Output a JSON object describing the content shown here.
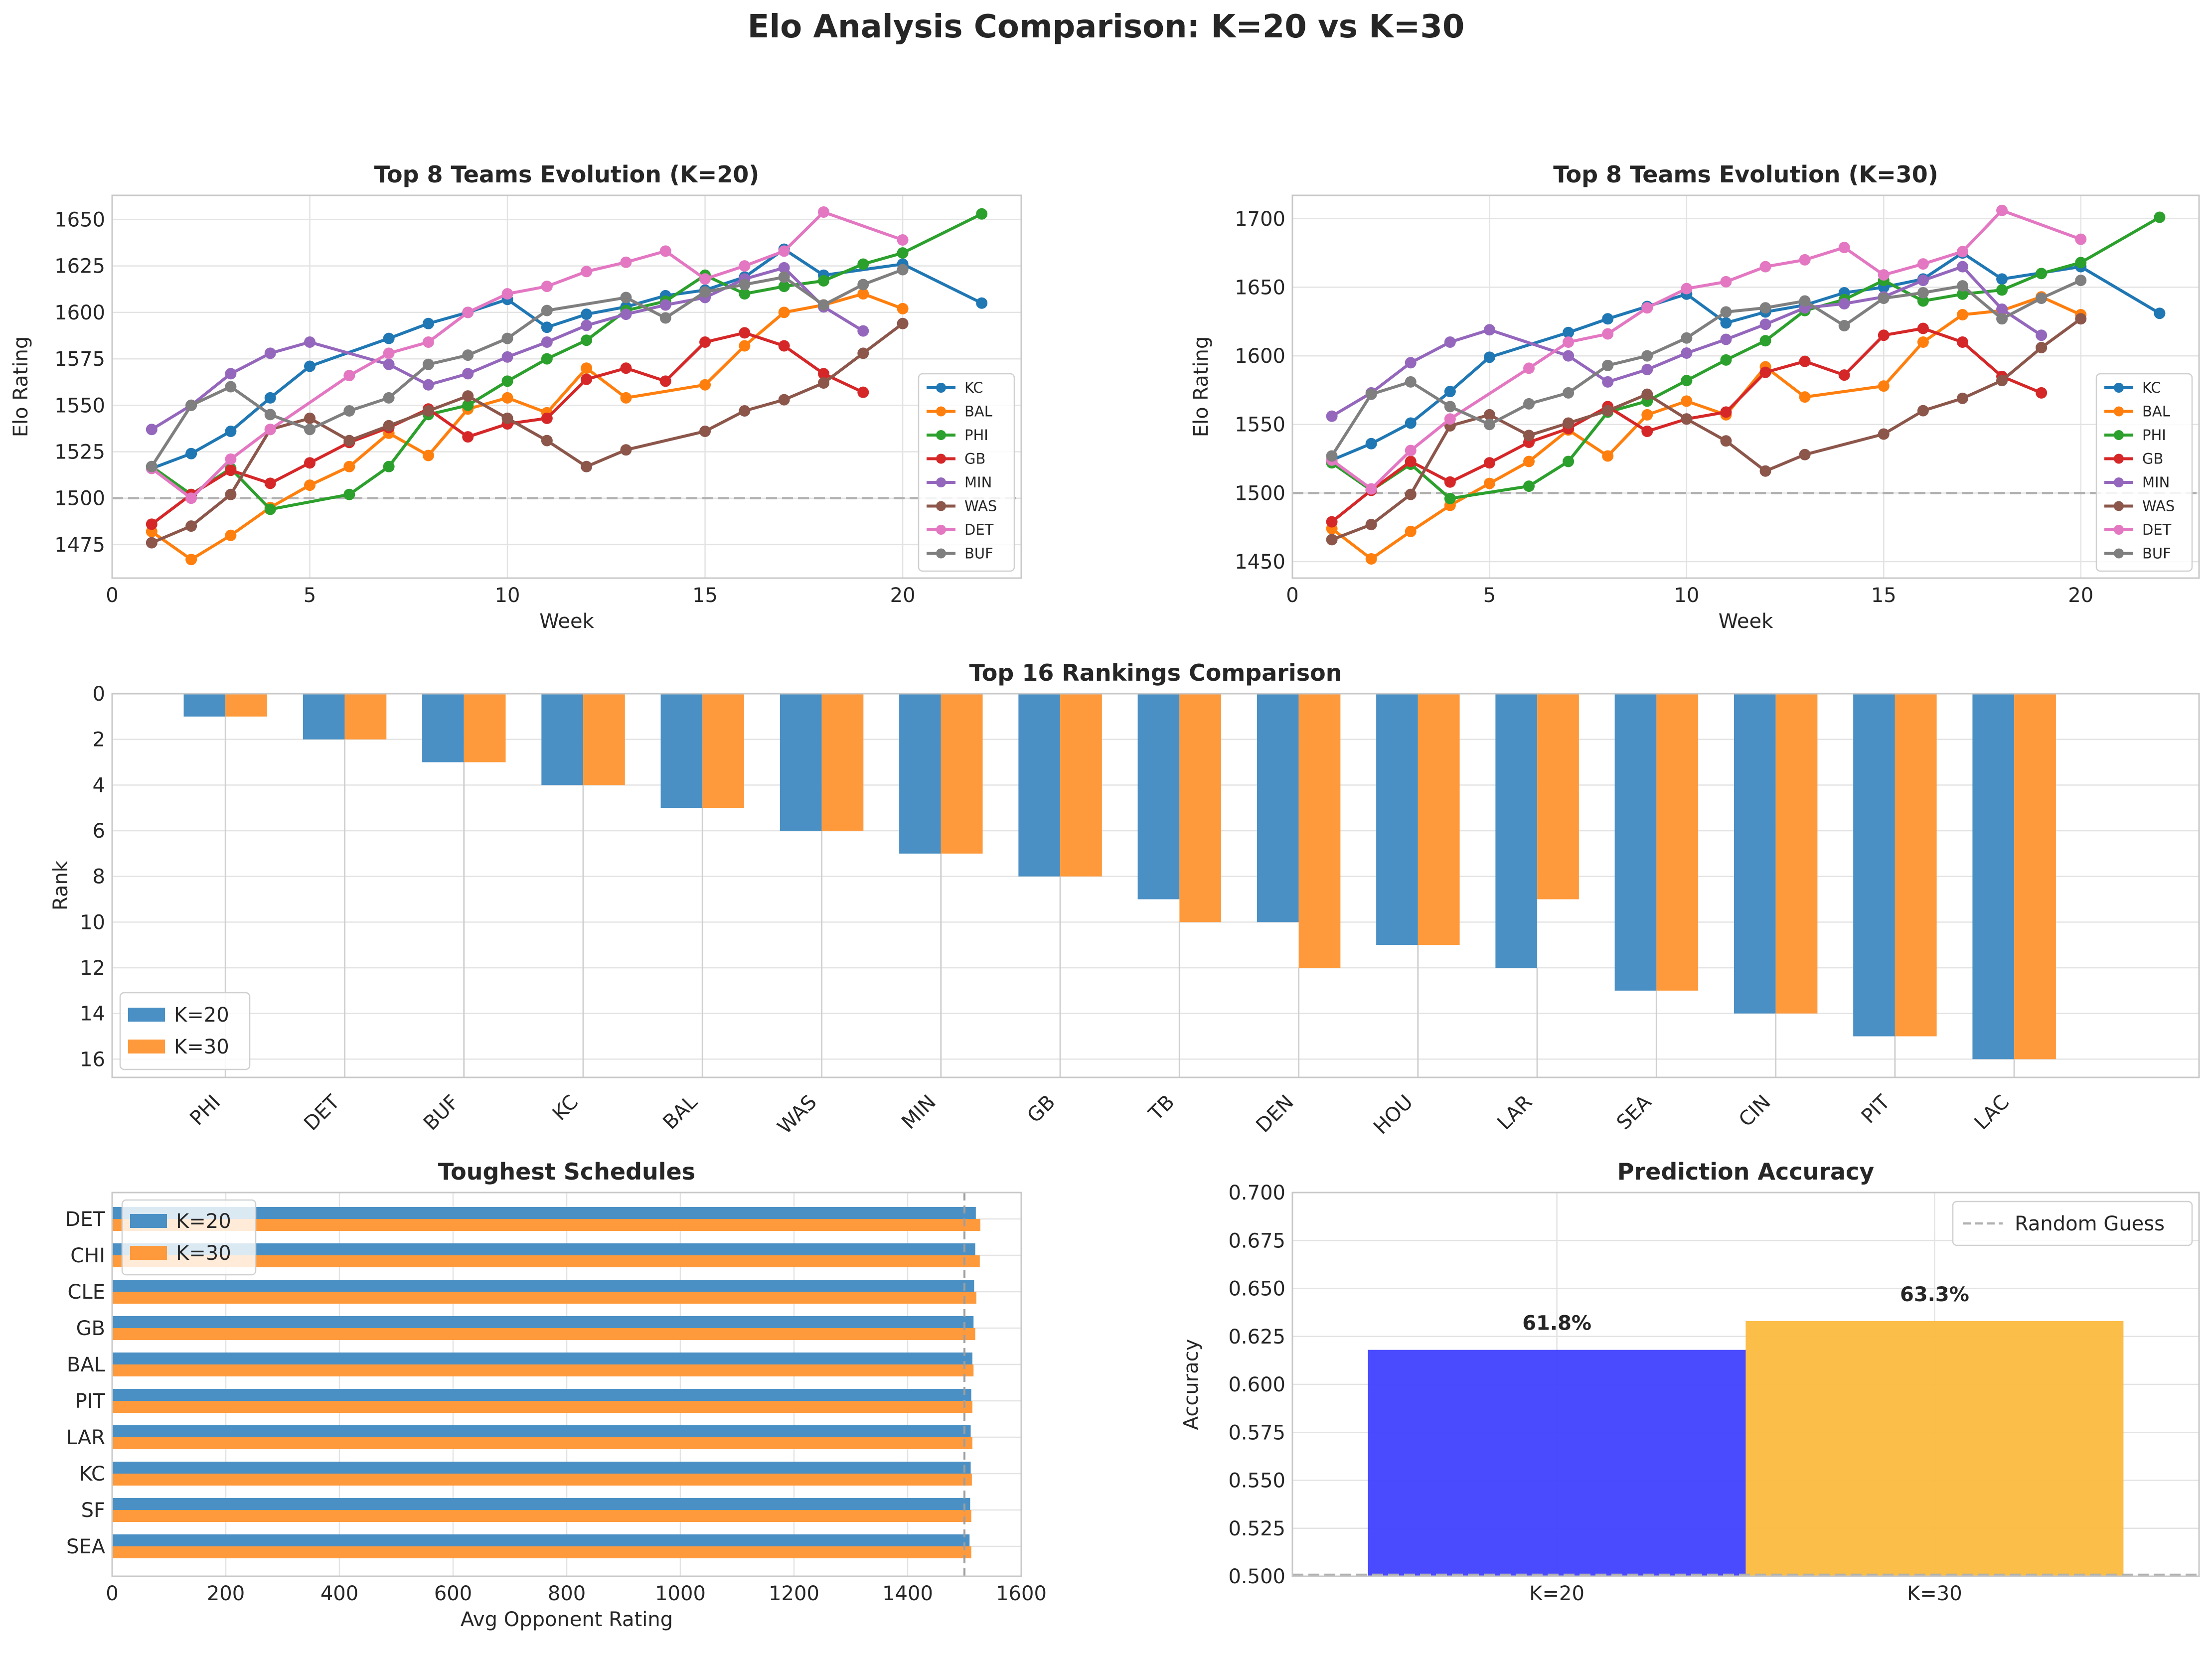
{
  "figure": {
    "suptitle": "Elo Analysis Comparison: K=20 vs K=30"
  },
  "chart_data": [
    {
      "type": "line",
      "title": "Top 8 Teams Evolution (K=20)",
      "xlabel": "Week",
      "ylabel": "Elo Rating",
      "xlim": [
        0,
        23
      ],
      "ylim": [
        1457,
        1663
      ],
      "xticks": [
        0,
        5,
        10,
        15,
        20
      ],
      "yticks": [
        1475,
        1500,
        1525,
        1550,
        1575,
        1600,
        1625,
        1650
      ],
      "baseline": 1500,
      "legend": "lower-right",
      "series": [
        {
          "name": "KC",
          "color": "#1f77b4",
          "x": [
            1,
            2,
            3,
            4,
            5,
            7,
            8,
            9,
            10,
            11,
            12,
            13,
            14,
            15,
            16,
            17,
            18,
            20,
            22
          ],
          "values": [
            1516,
            1524,
            1536,
            1554,
            1571,
            1586,
            1594,
            1600,
            1607,
            1592,
            1599,
            1603,
            1609,
            1612,
            1619,
            1634,
            1620,
            1626,
            1605
          ]
        },
        {
          "name": "BAL",
          "color": "#ff7f0e",
          "x": [
            1,
            2,
            3,
            4,
            5,
            6,
            7,
            8,
            9,
            10,
            11,
            12,
            13,
            15,
            16,
            17,
            18,
            19,
            20
          ],
          "values": [
            1482,
            1467,
            1480,
            1495,
            1507,
            1517,
            1535,
            1523,
            1548,
            1554,
            1546,
            1570,
            1554,
            1561,
            1582,
            1600,
            1604,
            1610,
            1602
          ]
        },
        {
          "name": "PHI",
          "color": "#2ca02c",
          "x": [
            1,
            2,
            3,
            4,
            6,
            7,
            8,
            9,
            10,
            11,
            12,
            13,
            14,
            15,
            16,
            17,
            18,
            19,
            20,
            22
          ],
          "values": [
            1517,
            1502,
            1516,
            1494,
            1502,
            1517,
            1545,
            1550,
            1563,
            1575,
            1585,
            1601,
            1606,
            1620,
            1610,
            1614,
            1617,
            1626,
            1632,
            1653
          ]
        },
        {
          "name": "GB",
          "color": "#d62728",
          "x": [
            1,
            2,
            3,
            4,
            5,
            6,
            7,
            8,
            9,
            10,
            11,
            12,
            13,
            14,
            15,
            16,
            17,
            18,
            19
          ],
          "values": [
            1486,
            1502,
            1515,
            1508,
            1519,
            1530,
            1538,
            1548,
            1533,
            1540,
            1543,
            1564,
            1570,
            1563,
            1584,
            1589,
            1582,
            1567,
            1557
          ]
        },
        {
          "name": "MIN",
          "color": "#9467bd",
          "x": [
            1,
            2,
            3,
            4,
            5,
            7,
            8,
            9,
            10,
            11,
            12,
            13,
            14,
            15,
            16,
            17,
            18,
            19
          ],
          "values": [
            1537,
            1550,
            1567,
            1578,
            1584,
            1572,
            1561,
            1567,
            1576,
            1584,
            1593,
            1599,
            1604,
            1608,
            1618,
            1624,
            1603,
            1590
          ]
        },
        {
          "name": "WAS",
          "color": "#8c564b",
          "x": [
            1,
            2,
            3,
            4,
            5,
            6,
            7,
            8,
            9,
            10,
            11,
            12,
            13,
            15,
            16,
            17,
            18,
            19,
            20
          ],
          "values": [
            1476,
            1485,
            1502,
            1537,
            1543,
            1531,
            1539,
            1547,
            1555,
            1543,
            1531,
            1517,
            1526,
            1536,
            1547,
            1553,
            1562,
            1578,
            1594
          ]
        },
        {
          "name": "DET",
          "color": "#e377c2",
          "x": [
            1,
            2,
            3,
            4,
            6,
            7,
            8,
            9,
            10,
            11,
            12,
            13,
            14,
            15,
            16,
            17,
            18,
            20
          ],
          "values": [
            1516,
            1500,
            1521,
            1537,
            1566,
            1578,
            1584,
            1600,
            1610,
            1614,
            1622,
            1627,
            1633,
            1618,
            1625,
            1633,
            1654,
            1639
          ]
        },
        {
          "name": "BUF",
          "color": "#7f7f7f",
          "x": [
            1,
            2,
            3,
            4,
            5,
            6,
            7,
            8,
            9,
            10,
            11,
            13,
            14,
            15,
            16,
            17,
            18,
            19,
            20
          ],
          "values": [
            1517,
            1550,
            1560,
            1545,
            1537,
            1547,
            1554,
            1572,
            1577,
            1586,
            1601,
            1608,
            1597,
            1611,
            1615,
            1619,
            1604,
            1615,
            1623
          ]
        }
      ]
    },
    {
      "type": "line",
      "title": "Top 8 Teams Evolution (K=30)",
      "xlabel": "Week",
      "ylabel": "Elo Rating",
      "xlim": [
        0,
        23
      ],
      "ylim": [
        1438,
        1717
      ],
      "xticks": [
        0,
        5,
        10,
        15,
        20
      ],
      "yticks": [
        1450,
        1500,
        1550,
        1600,
        1650,
        1700
      ],
      "baseline": 1500,
      "legend": "lower-right",
      "series": [
        {
          "name": "KC",
          "color": "#1f77b4",
          "x": [
            1,
            2,
            3,
            4,
            5,
            7,
            8,
            9,
            10,
            11,
            12,
            13,
            14,
            15,
            16,
            17,
            18,
            20,
            22
          ],
          "values": [
            1524,
            1536,
            1551,
            1574,
            1599,
            1617,
            1627,
            1636,
            1645,
            1624,
            1632,
            1637,
            1646,
            1650,
            1656,
            1675,
            1656,
            1665,
            1631
          ]
        },
        {
          "name": "BAL",
          "color": "#ff7f0e",
          "x": [
            1,
            2,
            3,
            4,
            5,
            6,
            7,
            8,
            9,
            10,
            11,
            12,
            13,
            15,
            16,
            17,
            18,
            19,
            20
          ],
          "values": [
            1474,
            1452,
            1472,
            1491,
            1507,
            1523,
            1546,
            1527,
            1557,
            1567,
            1557,
            1592,
            1570,
            1578,
            1610,
            1630,
            1633,
            1643,
            1630
          ]
        },
        {
          "name": "PHI",
          "color": "#2ca02c",
          "x": [
            1,
            2,
            3,
            4,
            6,
            7,
            8,
            9,
            10,
            11,
            12,
            13,
            14,
            15,
            16,
            17,
            18,
            19,
            20,
            22
          ],
          "values": [
            1522,
            1502,
            1521,
            1496,
            1505,
            1523,
            1559,
            1567,
            1582,
            1597,
            1611,
            1633,
            1641,
            1655,
            1640,
            1645,
            1648,
            1660,
            1668,
            1701
          ]
        },
        {
          "name": "GB",
          "color": "#d62728",
          "x": [
            1,
            2,
            3,
            4,
            5,
            6,
            7,
            8,
            9,
            10,
            11,
            12,
            13,
            14,
            15,
            16,
            17,
            18,
            19
          ],
          "values": [
            1479,
            1502,
            1523,
            1508,
            1522,
            1537,
            1547,
            1563,
            1545,
            1554,
            1559,
            1588,
            1596,
            1586,
            1615,
            1620,
            1610,
            1585,
            1573
          ]
        },
        {
          "name": "MIN",
          "color": "#9467bd",
          "x": [
            1,
            2,
            3,
            4,
            5,
            7,
            8,
            9,
            10,
            11,
            12,
            13,
            14,
            15,
            16,
            17,
            18,
            19
          ],
          "values": [
            1556,
            1573,
            1595,
            1610,
            1619,
            1600,
            1581,
            1590,
            1602,
            1612,
            1623,
            1635,
            1638,
            1643,
            1655,
            1665,
            1634,
            1615
          ]
        },
        {
          "name": "WAS",
          "color": "#8c564b",
          "x": [
            1,
            2,
            3,
            4,
            5,
            6,
            7,
            8,
            9,
            10,
            11,
            12,
            13,
            15,
            16,
            17,
            18,
            19,
            20
          ],
          "values": [
            1466,
            1477,
            1499,
            1549,
            1557,
            1542,
            1551,
            1560,
            1572,
            1554,
            1538,
            1516,
            1528,
            1543,
            1560,
            1569,
            1582,
            1606,
            1627
          ]
        },
        {
          "name": "DET",
          "color": "#e377c2",
          "x": [
            1,
            2,
            3,
            4,
            6,
            7,
            8,
            9,
            10,
            11,
            12,
            13,
            14,
            15,
            16,
            17,
            18,
            20
          ],
          "values": [
            1524,
            1503,
            1531,
            1554,
            1591,
            1610,
            1616,
            1635,
            1649,
            1654,
            1665,
            1670,
            1679,
            1659,
            1667,
            1676,
            1706,
            1685
          ]
        },
        {
          "name": "BUF",
          "color": "#7f7f7f",
          "x": [
            1,
            2,
            3,
            4,
            5,
            6,
            7,
            8,
            9,
            10,
            11,
            12,
            13,
            14,
            15,
            16,
            17,
            18,
            19,
            20
          ],
          "values": [
            1527,
            1572,
            1581,
            1563,
            1550,
            1565,
            1573,
            1593,
            1600,
            1613,
            1632,
            1635,
            1640,
            1622,
            1642,
            1646,
            1651,
            1627,
            1642,
            1655
          ]
        }
      ]
    },
    {
      "type": "bar",
      "title": "Top 16 Rankings Comparison",
      "xlabel": "",
      "ylabel": "Rank",
      "categories": [
        "PHI",
        "DET",
        "BUF",
        "KC",
        "BAL",
        "WAS",
        "MIN",
        "GB",
        "TB",
        "DEN",
        "HOU",
        "LAR",
        "SEA",
        "CIN",
        "PIT",
        "LAC"
      ],
      "ylim": [
        16.8,
        0
      ],
      "yticks": [
        0,
        2,
        4,
        6,
        8,
        10,
        12,
        14,
        16
      ],
      "legend": "lower-left",
      "series": [
        {
          "name": "K=20",
          "color": "#4a90c4",
          "values": [
            1,
            2,
            3,
            4,
            5,
            6,
            7,
            8,
            9,
            10,
            11,
            12,
            13,
            14,
            15,
            16
          ]
        },
        {
          "name": "K=30",
          "color": "#ff9a3c",
          "values": [
            1,
            2,
            3,
            4,
            5,
            6,
            7,
            8,
            10,
            12,
            11,
            9,
            13,
            14,
            15,
            16
          ]
        }
      ]
    },
    {
      "type": "bar",
      "orientation": "horizontal",
      "title": "Toughest Schedules",
      "xlabel": "Avg Opponent Rating",
      "ylabel": "",
      "categories": [
        "DET",
        "CHI",
        "CLE",
        "GB",
        "BAL",
        "PIT",
        "LAR",
        "KC",
        "SF",
        "SEA"
      ],
      "xlim": [
        0,
        1600
      ],
      "xticks": [
        0,
        200,
        400,
        600,
        800,
        1000,
        1200,
        1400,
        1600
      ],
      "baseline": 1500,
      "legend": "top-left",
      "series": [
        {
          "name": "K=20",
          "color": "#4a90c4",
          "values": [
            1520,
            1519,
            1517,
            1516,
            1514,
            1512,
            1511,
            1511,
            1510,
            1509
          ]
        },
        {
          "name": "K=30",
          "color": "#ff9a3c",
          "values": [
            1528,
            1527,
            1521,
            1519,
            1516,
            1514,
            1514,
            1513,
            1512,
            1512
          ]
        }
      ]
    },
    {
      "type": "bar",
      "title": "Prediction Accuracy",
      "xlabel": "",
      "ylabel": "Accuracy",
      "categories": [
        "K=20",
        "K=30"
      ],
      "values": [
        0.618,
        0.633
      ],
      "labels": [
        "61.8%",
        "63.3%"
      ],
      "colors": [
        "#4040ff",
        "#fbbb3f"
      ],
      "ylim": [
        0.5,
        0.7
      ],
      "yticks": [
        0.5,
        0.525,
        0.55,
        0.575,
        0.6,
        0.625,
        0.65,
        0.675,
        0.7
      ],
      "baseline": 0.5,
      "baseline_name": "Random Guess",
      "legend": "top-right"
    }
  ]
}
